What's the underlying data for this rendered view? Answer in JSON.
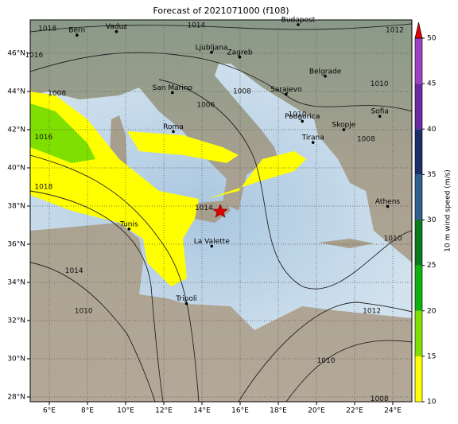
{
  "map": {
    "title": "Forecast of 2021071000 (f108)",
    "xlim": [
      5,
      25
    ],
    "ylim": [
      27.75,
      47.75
    ],
    "xticks": [
      {
        "value": 6,
        "label": "6°E"
      },
      {
        "value": 8,
        "label": "8°E"
      },
      {
        "value": 10,
        "label": "10°E"
      },
      {
        "value": 12,
        "label": "12°E"
      },
      {
        "value": 14,
        "label": "14°E"
      },
      {
        "value": 16,
        "label": "16°E"
      },
      {
        "value": 18,
        "label": "18°E"
      },
      {
        "value": 20,
        "label": "20°E"
      },
      {
        "value": 22,
        "label": "22°E"
      },
      {
        "value": 24,
        "label": "24°E"
      }
    ],
    "yticks": [
      {
        "value": 28,
        "label": "28°N"
      },
      {
        "value": 30,
        "label": "30°N"
      },
      {
        "value": 32,
        "label": "32°N"
      },
      {
        "value": 34,
        "label": "34°N"
      },
      {
        "value": 36,
        "label": "36°N"
      },
      {
        "value": 38,
        "label": "38°N"
      },
      {
        "value": 40,
        "label": "40°N"
      },
      {
        "value": 42,
        "label": "42°N"
      },
      {
        "value": 44,
        "label": "44°N"
      },
      {
        "value": 46,
        "label": "46°N"
      }
    ],
    "grid": true,
    "cities": [
      {
        "name": "Bern",
        "lon": 7.45,
        "lat": 46.95
      },
      {
        "name": "Vaduz",
        "lon": 9.52,
        "lat": 47.14
      },
      {
        "name": "Budapest",
        "lon": 19.04,
        "lat": 47.5
      },
      {
        "name": "Ljubljana",
        "lon": 14.5,
        "lat": 46.05
      },
      {
        "name": "Zagreb",
        "lon": 15.98,
        "lat": 45.8
      },
      {
        "name": "Belgrade",
        "lon": 20.46,
        "lat": 44.8
      },
      {
        "name": "San Marino",
        "lon": 12.45,
        "lat": 43.94
      },
      {
        "name": "Sarajevo",
        "lon": 18.41,
        "lat": 43.86
      },
      {
        "name": "Roma",
        "lon": 12.5,
        "lat": 41.9
      },
      {
        "name": "Podgorica",
        "lon": 19.26,
        "lat": 42.44
      },
      {
        "name": "Skopje",
        "lon": 21.43,
        "lat": 42.0
      },
      {
        "name": "Sofia",
        "lon": 23.32,
        "lat": 42.7
      },
      {
        "name": "Tirana",
        "lon": 19.82,
        "lat": 41.33
      },
      {
        "name": "Athens",
        "lon": 23.73,
        "lat": 37.98
      },
      {
        "name": "Tunis",
        "lon": 10.18,
        "lat": 36.8
      },
      {
        "name": "La Valette",
        "lon": 14.51,
        "lat": 35.9
      },
      {
        "name": "Tripoli",
        "lon": 13.19,
        "lat": 32.89
      }
    ],
    "isobar_labels": [
      {
        "label": "1018",
        "lon": 5.9,
        "lat": 47.3
      },
      {
        "label": "1014",
        "lon": 13.7,
        "lat": 47.45
      },
      {
        "label": "1012",
        "lon": 24.1,
        "lat": 47.2
      },
      {
        "label": "1016",
        "lon": 5.2,
        "lat": 45.9
      },
      {
        "label": "1008",
        "lon": 6.4,
        "lat": 43.9
      },
      {
        "label": "1016",
        "lon": 5.7,
        "lat": 41.6
      },
      {
        "label": "1018",
        "lon": 5.7,
        "lat": 39.0
      },
      {
        "label": "1006",
        "lon": 14.2,
        "lat": 43.3
      },
      {
        "label": "1008",
        "lon": 16.1,
        "lat": 44.0
      },
      {
        "label": "1010",
        "lon": 19.0,
        "lat": 42.8
      },
      {
        "label": "1010",
        "lon": 23.3,
        "lat": 44.4
      },
      {
        "label": "1008",
        "lon": 22.6,
        "lat": 41.5
      },
      {
        "label": "1014",
        "lon": 14.1,
        "lat": 37.9
      },
      {
        "label": "1010",
        "lon": 24.0,
        "lat": 36.3
      },
      {
        "label": "1014",
        "lon": 7.3,
        "lat": 34.6
      },
      {
        "label": "1010",
        "lon": 7.8,
        "lat": 32.5
      },
      {
        "label": "1012",
        "lon": 22.9,
        "lat": 32.5
      },
      {
        "label": "1010",
        "lon": 20.5,
        "lat": 29.9
      },
      {
        "label": "1008",
        "lon": 23.3,
        "lat": 27.9
      }
    ],
    "colorbar": {
      "label": "10 m wind speed (m/s)",
      "lim": [
        10,
        50
      ],
      "ticks": [
        10,
        15,
        20,
        25,
        30,
        35,
        40,
        45,
        50
      ],
      "colors": [
        "#ffff00",
        "#7fdf00",
        "#10b010",
        "#0a7a1a",
        "#2f5f8a",
        "#1c2f6a",
        "#6a2aa0",
        "#a040c0"
      ],
      "extend_color": "#e00000"
    }
  }
}
